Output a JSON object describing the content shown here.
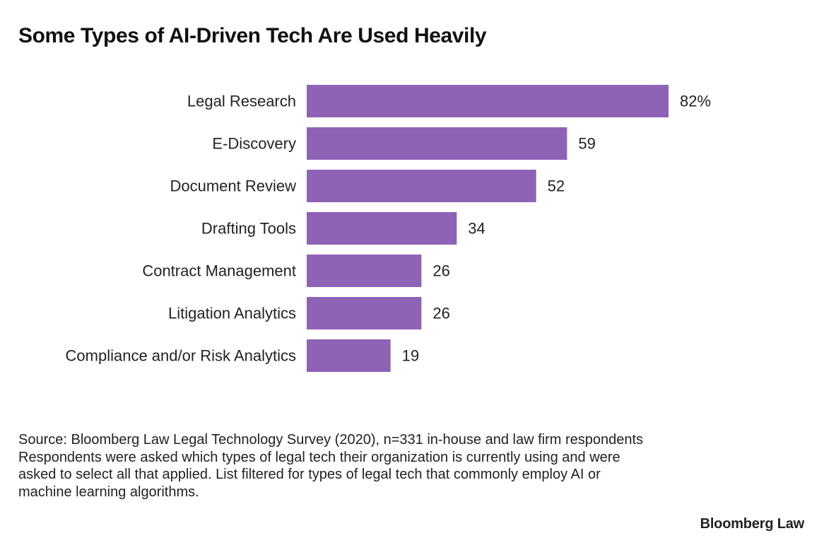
{
  "header": {
    "title": "Some Types of AI-Driven Tech Are Used Heavily"
  },
  "chart_data": {
    "type": "bar",
    "orientation": "horizontal",
    "title": "Some Types of AI-Driven Tech Are Used Heavily",
    "categories": [
      "Legal Research",
      "E-Discovery",
      "Document Review",
      "Drafting Tools",
      "Contract Management",
      "Litigation Analytics",
      "Compliance and/or Risk Analytics"
    ],
    "values": [
      82,
      59,
      52,
      34,
      26,
      26,
      19
    ],
    "value_labels": [
      "82%",
      "59",
      "52",
      "34",
      "26",
      "26",
      "19"
    ],
    "xlim": [
      0,
      82
    ],
    "xlabel": "",
    "ylabel": "",
    "grid": false,
    "legend": "none",
    "bar_color": "#8e62b5"
  },
  "notes": {
    "source": "Source: Bloomberg Law Legal Technology Survey (2020), n=331 in-house and law firm respondents",
    "description": "Respondents were asked which types of legal tech their organization is currently using and were asked to select all that applied. List filtered for types of legal tech that commonly employ AI or machine learning algorithms."
  },
  "brand": {
    "name": "Bloomberg Law"
  }
}
